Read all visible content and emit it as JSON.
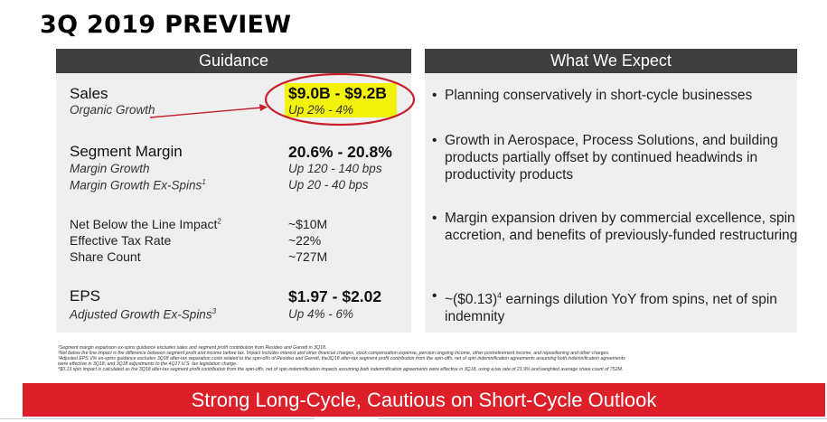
{
  "title": "3Q 2019 PREVIEW",
  "guidance": {
    "header": "Guidance",
    "sales": {
      "label": "Sales",
      "sub_label": "Organic Growth",
      "value": "$9.0B - $9.2B",
      "sub_value": "Up 2% - 4%"
    },
    "segment_margin": {
      "label": "Segment Margin",
      "value": "20.6% - 20.8%",
      "sub_label_1": "Margin Growth",
      "sub_value_1": "Up 120 - 140 bps",
      "sub_label_2": "Margin Growth Ex-Spins",
      "sub_label_2_sup": "1",
      "sub_value_2": "Up 20 - 40 bps"
    },
    "other": {
      "nbl_label": "Net Below the Line Impact",
      "nbl_sup": "2",
      "nbl_value": "~$10M",
      "tax_label": "Effective Tax Rate",
      "tax_value": "~22%",
      "share_label": "Share Count",
      "share_value": "~727M"
    },
    "eps": {
      "label": "EPS",
      "value": "$1.97 - $2.02",
      "sub_label": "Adjusted Growth Ex-Spins",
      "sub_label_sup": "3",
      "sub_value": "Up 4% - 6%"
    }
  },
  "expect": {
    "header": "What We Expect",
    "bullets": [
      "Planning conservatively in short-cycle businesses",
      "Growth in Aerospace, Process Solutions, and building products partially offset by continued headwinds in productivity products",
      "Margin expansion driven by commercial excellence, spin accretion, and benefits of previously-funded restructuring"
    ],
    "bullet_4_pre": "~($0.13)",
    "bullet_4_sup": "4",
    "bullet_4_post": " earnings dilution YoY from spins, net of spin indemnity",
    "bullet_char": "•"
  },
  "footnotes": [
    "¹Segment margin expansion ex-spins guidance excludes sales and segment profit contribution from Resideo and Garrett in 3Q18.",
    "²Net below the line impact is the difference between segment profit and income before tax. Impact includes interest and other financial charges, stock compensation expense, pension ongoing income, other postretirement income, and repositioning and other charges.",
    "³Adjusted EPS V% ex-spins guidance excludes 3Q18 after-tax separation costs related to the spin-offs of Resideo and Garrett, the3Q18 after-tax segment profit contribution from the spin-offs, net of spin indemnification agreements assuming both indemnification agreements",
    "were effective in 3Q18, and 3Q18 adjustments to the 4Q17 U.S. tax legislation charge.",
    "⁴$0.13 spin impact is calculated as the 3Q18 after-tax segment profit contribution from the spin-offs, net of spin indemnification impacts assuming both indemnification agreements were effective in 3Q18, using a tax rate of 21.9% and weighted average share count of 752M."
  ],
  "banner": "Strong Long-Cycle, Cautious on Short-Cycle Outlook",
  "colors": {
    "banner": "#dd1f2a",
    "header": "#3f3f3f",
    "highlight": "#f2f20c",
    "annotation": "#c8202a"
  }
}
